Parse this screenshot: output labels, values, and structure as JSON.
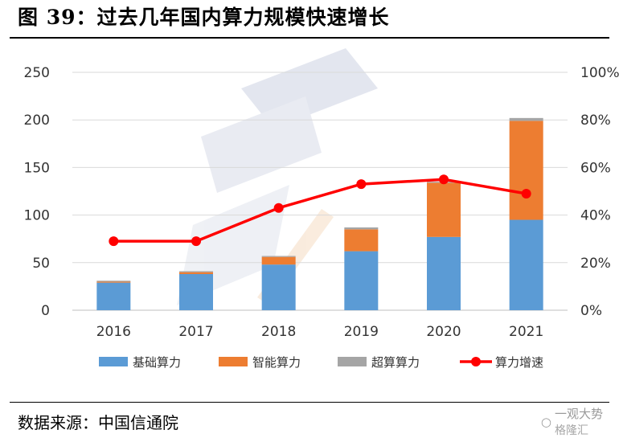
{
  "title": "图 39：过去几年国内算力规模快速增长",
  "source": "数据来源：中国信通院",
  "watermark": {
    "line1": "一观大势",
    "line2": "格隆汇"
  },
  "chart_data": {
    "type": "bar",
    "stacked": true,
    "categories": [
      "2016",
      "2017",
      "2018",
      "2019",
      "2020",
      "2021"
    ],
    "series": [
      {
        "name": "基础算力",
        "color": "#5b9bd5",
        "values": [
          29,
          38,
          48,
          62,
          77,
          95
        ]
      },
      {
        "name": "智能算力",
        "color": "#ed7d31",
        "values": [
          1,
          2,
          8,
          23,
          57,
          104
        ]
      },
      {
        "name": "超算算力",
        "color": "#a5a5a5",
        "values": [
          1,
          1,
          1,
          2,
          1,
          3
        ]
      }
    ],
    "line_series": {
      "name": "算力增速",
      "color": "#ff0000",
      "axis": "right",
      "values": [
        0.29,
        0.29,
        0.43,
        0.53,
        0.55,
        0.49
      ]
    },
    "y_left": {
      "min": 0,
      "max": 250,
      "ticks": [
        0,
        50,
        100,
        150,
        200,
        250
      ]
    },
    "y_right": {
      "min": 0,
      "max": 1,
      "ticks": [
        "0%",
        "20%",
        "40%",
        "60%",
        "80%",
        "100%"
      ]
    },
    "grid": true,
    "legend": "bottom"
  }
}
